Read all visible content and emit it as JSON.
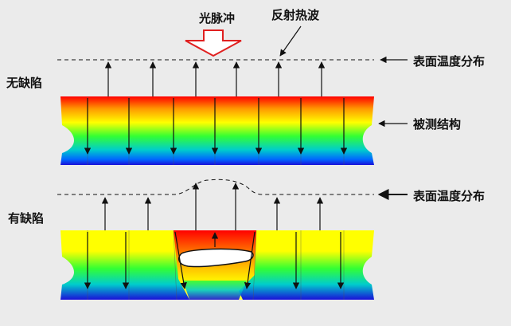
{
  "labels": {
    "pulse": "光脉冲",
    "reflected": "反射热波",
    "surface_top": "表面温度分布",
    "surface_bottom": "表面温度分布",
    "no_defect": "无缺陷",
    "has_defect": "有缺陷",
    "structure": "被测结构"
  },
  "colors": {
    "pulse_arrow": "#e02020",
    "gradient": [
      "#ff0000",
      "#ff9900",
      "#ffff00",
      "#33ff33",
      "#00cccc",
      "#0066ff",
      "#1a10d8"
    ],
    "background": "#ebebeb"
  }
}
